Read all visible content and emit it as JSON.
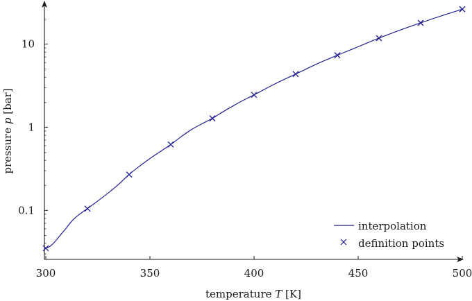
{
  "chart_data": {
    "type": "line",
    "x_scale": "linear",
    "y_scale": "log",
    "xlim": [
      300,
      500
    ],
    "ylim": [
      0.03,
      28
    ],
    "xticks": [
      300,
      350,
      400,
      450,
      500
    ],
    "xtick_labels": [
      "300",
      "350",
      "400",
      "450",
      "500"
    ],
    "yticks": [
      0.1,
      1,
      10
    ],
    "ytick_labels": [
      "0.1",
      "1",
      "10"
    ],
    "xlabel": "temperature T [K]",
    "ylabel": "pressure p [bar]",
    "xlabel_parts": {
      "pre": "temperature ",
      "var": "T",
      "post": " [K]"
    },
    "ylabel_parts": {
      "pre": "pressure ",
      "var": "p",
      "post": " [bar]"
    },
    "grid": false,
    "legend_position": "bottom-right",
    "series": [
      {
        "name": "interpolation",
        "style": "line",
        "color": "#1f1f8f",
        "x": [
          300,
          302,
          304,
          306,
          308,
          310,
          312,
          314,
          316,
          318,
          320,
          325,
          330,
          335,
          340,
          345,
          350,
          355,
          360,
          365,
          370,
          375,
          380,
          385,
          390,
          395,
          400,
          410,
          420,
          430,
          440,
          450,
          460,
          470,
          480,
          490,
          500
        ],
        "y": [
          0.035,
          0.037,
          0.041,
          0.047,
          0.054,
          0.062,
          0.072,
          0.081,
          0.089,
          0.097,
          0.105,
          0.13,
          0.162,
          0.206,
          0.27,
          0.34,
          0.42,
          0.51,
          0.62,
          0.77,
          0.94,
          1.1,
          1.28,
          1.53,
          1.81,
          2.12,
          2.45,
          3.32,
          4.36,
          5.75,
          7.35,
          9.3,
          11.8,
          14.7,
          18.0,
          21.9,
          26.3
        ]
      },
      {
        "name": "definition points",
        "style": "marker-x",
        "color": "#1f1f8f",
        "x": [
          300,
          320,
          340,
          360,
          380,
          400,
          420,
          440,
          460,
          480,
          500
        ],
        "y": [
          0.035,
          0.105,
          0.27,
          0.62,
          1.28,
          2.45,
          4.36,
          7.35,
          11.8,
          18.0,
          26.3
        ]
      }
    ]
  }
}
